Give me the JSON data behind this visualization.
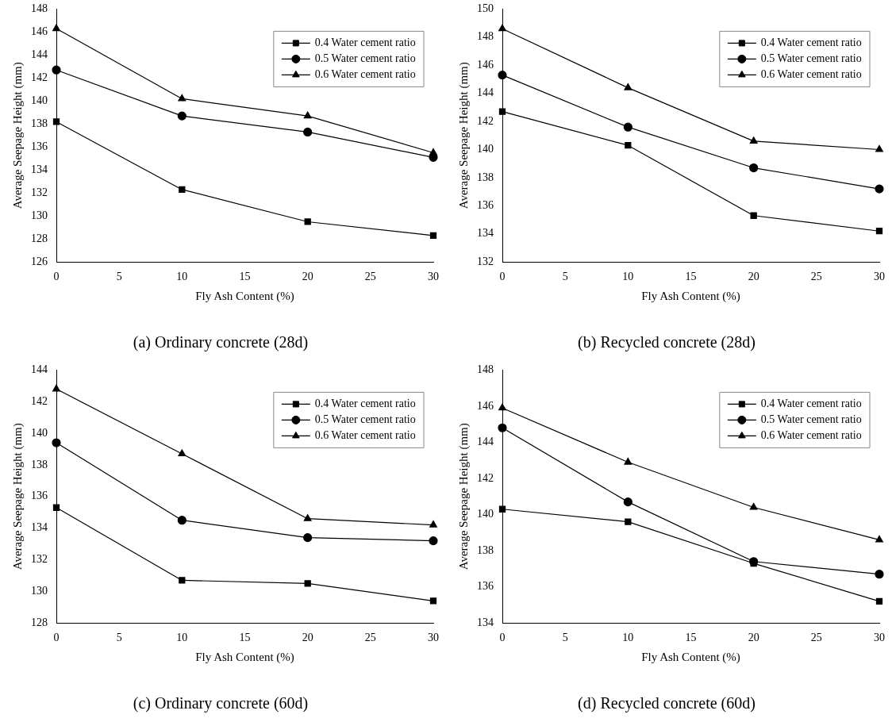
{
  "chart_data": [
    {
      "type": "line",
      "title": "(a) Ordinary concrete (28d)",
      "xlabel": "Fly Ash Content (%)",
      "ylabel": "Average Seepage Height (mm)",
      "x": [
        0,
        10,
        20,
        30
      ],
      "xlim": [
        0,
        30
      ],
      "xticks": [
        0,
        5,
        10,
        15,
        20,
        25,
        30
      ],
      "ylim": [
        126,
        148
      ],
      "yticks": [
        126,
        128,
        130,
        132,
        134,
        136,
        138,
        140,
        142,
        144,
        146,
        148
      ],
      "grid": false,
      "legend": "top right",
      "line_style": "solid",
      "series": [
        {
          "name": "0.4 Water cement ratio",
          "color": "#000000",
          "marker": "square",
          "values": [
            138.2,
            132.3,
            129.5,
            128.3
          ]
        },
        {
          "name": "0.5 Water cement ratio",
          "color": "#000000",
          "marker": "circle",
          "values": [
            142.7,
            138.7,
            137.3,
            135.1
          ]
        },
        {
          "name": "0.6 Water cement ratio",
          "color": "#000000",
          "marker": "triangle",
          "values": [
            146.3,
            140.2,
            138.7,
            135.5
          ]
        }
      ]
    },
    {
      "type": "line",
      "title": "(b) Recycled concrete (28d)",
      "xlabel": "Fly Ash Content (%)",
      "ylabel": "Average Seepage Height (mm)",
      "x": [
        0,
        10,
        20,
        30
      ],
      "xlim": [
        0,
        30
      ],
      "xticks": [
        0,
        5,
        10,
        15,
        20,
        25,
        30
      ],
      "ylim": [
        132,
        150
      ],
      "yticks": [
        132,
        134,
        136,
        138,
        140,
        142,
        144,
        146,
        148,
        150
      ],
      "grid": false,
      "legend": "top right",
      "line_style": "solid",
      "series": [
        {
          "name": "0.4 Water cement ratio",
          "color": "#000000",
          "marker": "square",
          "values": [
            142.7,
            140.3,
            135.3,
            134.2
          ]
        },
        {
          "name": "0.5 Water cement ratio",
          "color": "#000000",
          "marker": "circle",
          "values": [
            145.3,
            141.6,
            138.7,
            137.2
          ]
        },
        {
          "name": "0.6 Water cement ratio",
          "color": "#000000",
          "marker": "triangle",
          "values": [
            148.6,
            144.4,
            140.6,
            140.0
          ]
        }
      ]
    },
    {
      "type": "line",
      "title": "(c) Ordinary concrete (60d)",
      "xlabel": "Fly Ash Content (%)",
      "ylabel": "Average Seepage Height (mm)",
      "x": [
        0,
        10,
        20,
        30
      ],
      "xlim": [
        0,
        30
      ],
      "xticks": [
        0,
        5,
        10,
        15,
        20,
        25,
        30
      ],
      "ylim": [
        128,
        144
      ],
      "yticks": [
        128,
        130,
        132,
        134,
        136,
        138,
        140,
        142,
        144
      ],
      "grid": false,
      "legend": "top right",
      "line_style": "solid",
      "series": [
        {
          "name": "0.4 Water cement ratio",
          "color": "#000000",
          "marker": "square",
          "values": [
            135.3,
            130.7,
            130.5,
            129.4
          ]
        },
        {
          "name": "0.5 Water cement ratio",
          "color": "#000000",
          "marker": "circle",
          "values": [
            139.4,
            134.5,
            133.4,
            133.2
          ]
        },
        {
          "name": "0.6 Water cement ratio",
          "color": "#000000",
          "marker": "triangle",
          "values": [
            142.8,
            138.7,
            134.6,
            134.2
          ]
        }
      ]
    },
    {
      "type": "line",
      "title": "(d) Recycled concrete (60d)",
      "xlabel": "Fly Ash Content (%)",
      "ylabel": "Average Seepage Height (mm)",
      "x": [
        0,
        10,
        20,
        30
      ],
      "xlim": [
        0,
        30
      ],
      "xticks": [
        0,
        5,
        10,
        15,
        20,
        25,
        30
      ],
      "ylim": [
        134,
        148
      ],
      "yticks": [
        134,
        136,
        138,
        140,
        142,
        144,
        146,
        148
      ],
      "grid": false,
      "legend": "top right",
      "line_style": "solid",
      "series": [
        {
          "name": "0.4 Water cement ratio",
          "color": "#000000",
          "marker": "square",
          "values": [
            140.3,
            139.6,
            137.3,
            135.2
          ]
        },
        {
          "name": "0.5 Water cement ratio",
          "color": "#000000",
          "marker": "circle",
          "values": [
            144.8,
            140.7,
            137.4,
            136.7
          ]
        },
        {
          "name": "0.6 Water cement ratio",
          "color": "#000000",
          "marker": "triangle",
          "values": [
            145.9,
            142.9,
            140.4,
            138.6
          ]
        }
      ]
    }
  ]
}
